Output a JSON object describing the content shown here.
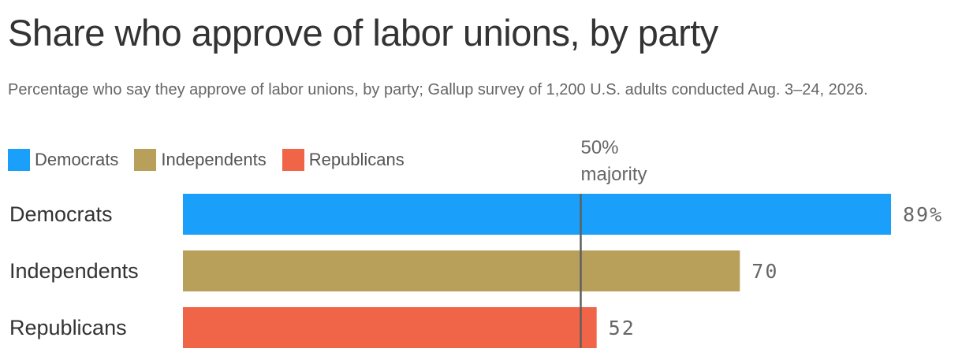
{
  "chart_data": {
    "type": "bar",
    "orientation": "horizontal",
    "title": "Share who approve of labor unions, by party",
    "subtitle": "Percentage who say they approve of labor unions, by party; Gallup survey of 1,200 U.S. adults conducted Aug. 3–24, 2026.",
    "categories": [
      "Democrats",
      "Independents",
      "Republicans"
    ],
    "values": [
      89,
      70,
      52
    ],
    "value_labels": [
      "89%",
      "70",
      "52"
    ],
    "colors": [
      "#1a9ffa",
      "#b8a05a",
      "#f06448"
    ],
    "legend": {
      "placement": "top-left",
      "entries": [
        {
          "label": "Democrats",
          "color": "#1a9ffa"
        },
        {
          "label": "Independents",
          "color": "#b8a05a"
        },
        {
          "label": "Republicans",
          "color": "#f06448"
        }
      ]
    },
    "reference_line": {
      "value": 50,
      "label_line1": "50%",
      "label_line2": "majority",
      "color": "#5f5f5f"
    },
    "xlim": [
      0,
      100
    ],
    "grid": false,
    "xlabel": "",
    "ylabel": ""
  }
}
